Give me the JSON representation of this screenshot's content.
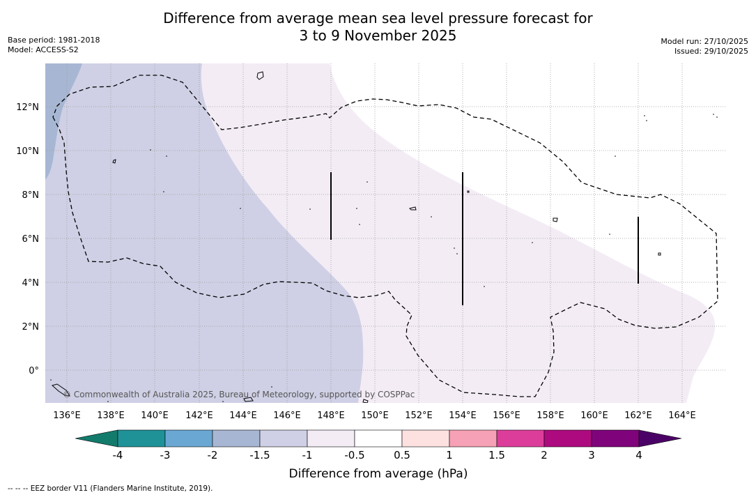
{
  "title": {
    "line1": "Difference from average mean sea level pressure forecast for",
    "line2": "3 to 9 November 2025"
  },
  "meta_left": {
    "base_period": "Base period: 1981-2018",
    "model": "Model: ACCESS-S2"
  },
  "meta_right": {
    "model_run": "Model run: 27/10/2025",
    "issued": "Issued: 29/10/2025"
  },
  "map": {
    "lon_range": [
      135,
      166
    ],
    "lat_range": [
      -1.5,
      14
    ],
    "lon_ticks": [
      {
        "value": 136,
        "label": "136°E"
      },
      {
        "value": 138,
        "label": "138°E"
      },
      {
        "value": 140,
        "label": "140°E"
      },
      {
        "value": 142,
        "label": "142°E"
      },
      {
        "value": 144,
        "label": "144°E"
      },
      {
        "value": 146,
        "label": "146°E"
      },
      {
        "value": 148,
        "label": "148°E"
      },
      {
        "value": 150,
        "label": "150°E"
      },
      {
        "value": 152,
        "label": "152°E"
      },
      {
        "value": 154,
        "label": "154°E"
      },
      {
        "value": 156,
        "label": "156°E"
      },
      {
        "value": 158,
        "label": "158°E"
      },
      {
        "value": 160,
        "label": "160°E"
      },
      {
        "value": 162,
        "label": "162°E"
      },
      {
        "value": 164,
        "label": "164°E"
      }
    ],
    "lat_ticks": [
      {
        "value": 12,
        "label": "12°N"
      },
      {
        "value": 10,
        "label": "10°N"
      },
      {
        "value": 8,
        "label": "8°N"
      },
      {
        "value": 6,
        "label": "6°N"
      },
      {
        "value": 4,
        "label": "4°N"
      },
      {
        "value": 2,
        "label": "2°N"
      },
      {
        "value": 0,
        "label": "0°"
      }
    ],
    "copyright": "© Commonwealth of Australia 2025, Bureau of Meteorology, supported by COSPPac"
  },
  "colorbar": {
    "title": "Difference from average (hPa)",
    "labels": [
      "-4",
      "-3",
      "-2",
      "-1.5",
      "-1",
      "-0.5",
      "0.5",
      "1",
      "1.5",
      "2",
      "3",
      "4"
    ],
    "colors": [
      "#1f9298",
      "#6aa7d3",
      "#a7b7d3",
      "#cfd0e5",
      "#f3ecf5",
      "#ffffff",
      "#fde1e1",
      "#f6a1b5",
      "#dd3d9a",
      "#ae0a7f",
      "#7f047b"
    ],
    "low_extend_color": "#137b6c",
    "high_extend_color": "#4b0266"
  },
  "footnote": "--  --  -- EEZ border V11 (Flanders Marine Institute, 2019)."
}
